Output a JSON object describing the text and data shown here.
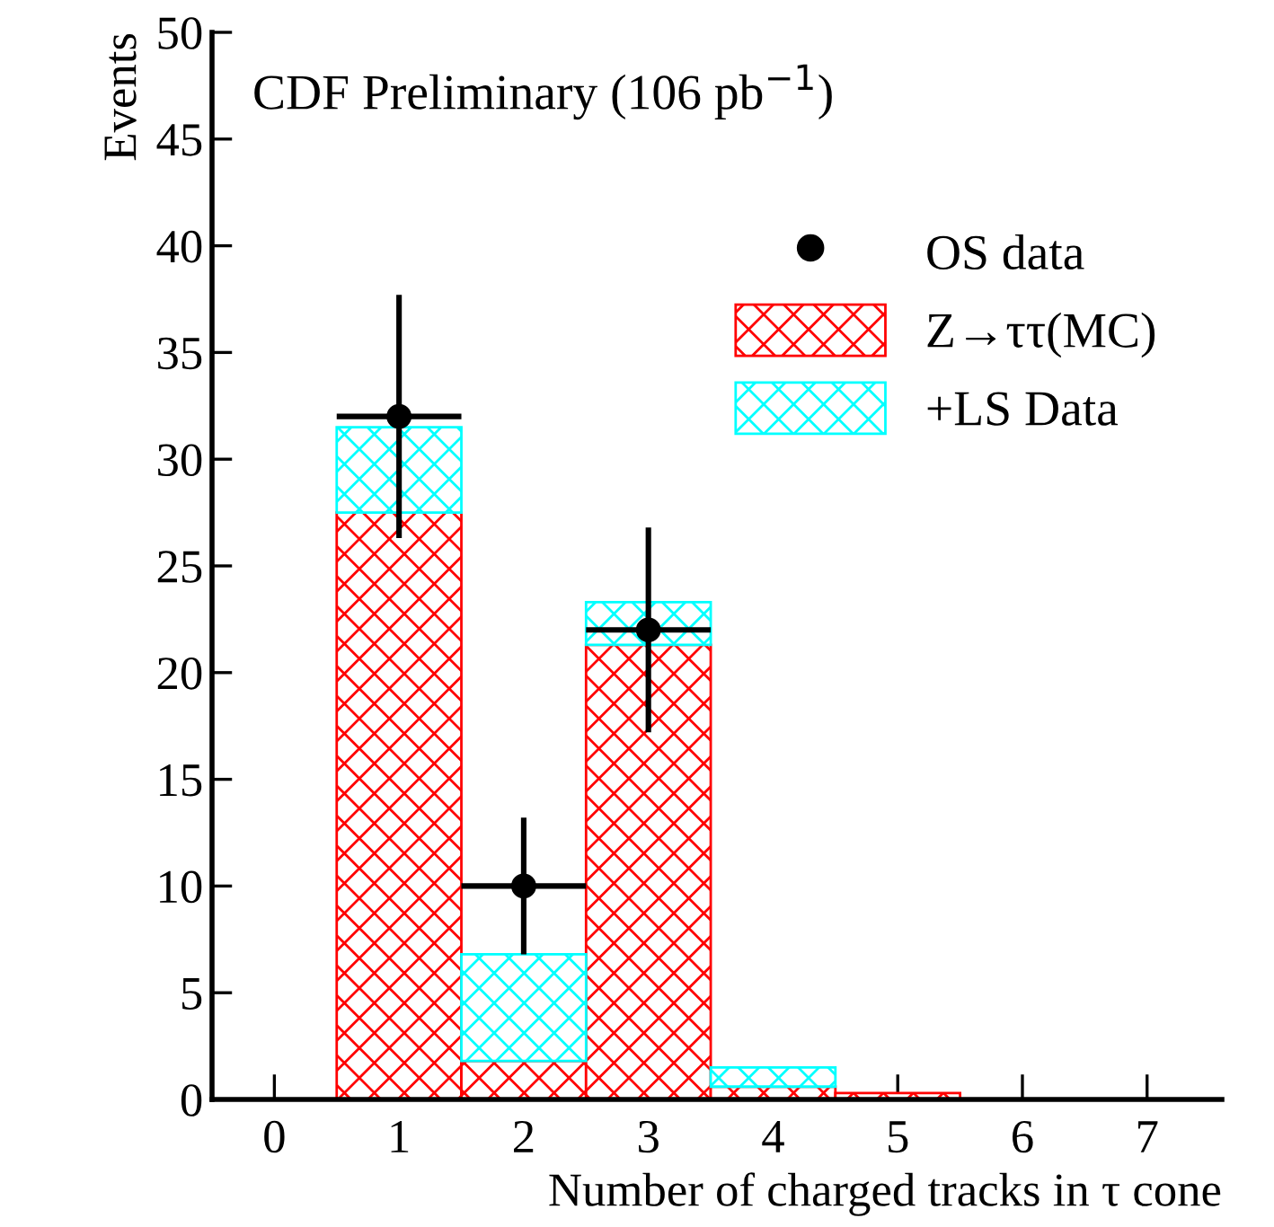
{
  "chart_data": {
    "type": "bar",
    "stacked": true,
    "title": "CDF Preliminary (106 pb$^{−1}$)",
    "xlabel": "Number of charged tracks in τ cone",
    "ylabel": "Events",
    "x": [
      0,
      1,
      2,
      3,
      4,
      5,
      6,
      7
    ],
    "series": [
      {
        "name": "Z→ττ(MC)",
        "color": "#ff0000",
        "values": [
          0,
          27.5,
          1.8,
          21.3,
          0.6,
          0.3,
          0,
          0
        ]
      },
      {
        "name": "+LS Data",
        "color": "#00ffff",
        "values": [
          null,
          4.0,
          5.0,
          2.0,
          0.9,
          null,
          null,
          null
        ]
      },
      {
        "name": "OS data",
        "type": "scatter",
        "color": "#000000",
        "marker": "circle",
        "x": [
          1,
          2,
          3
        ],
        "values": [
          32.0,
          10.0,
          22.0
        ],
        "errors": [
          [
            26.3,
            37.7
          ],
          [
            6.8,
            13.2
          ],
          [
            17.2,
            26.8
          ]
        ],
        "xerrors": [
          0.5,
          0.5,
          0.5
        ]
      }
    ],
    "xlim": [
      -0.5,
      7.6
    ],
    "xticks": [
      0,
      1,
      2,
      3,
      4,
      5,
      6,
      7
    ],
    "ylim": [
      0,
      50
    ],
    "yticks": [
      0,
      5,
      10,
      15,
      20,
      25,
      30,
      35,
      40,
      45,
      50
    ],
    "grid": false,
    "legend": "top right"
  }
}
